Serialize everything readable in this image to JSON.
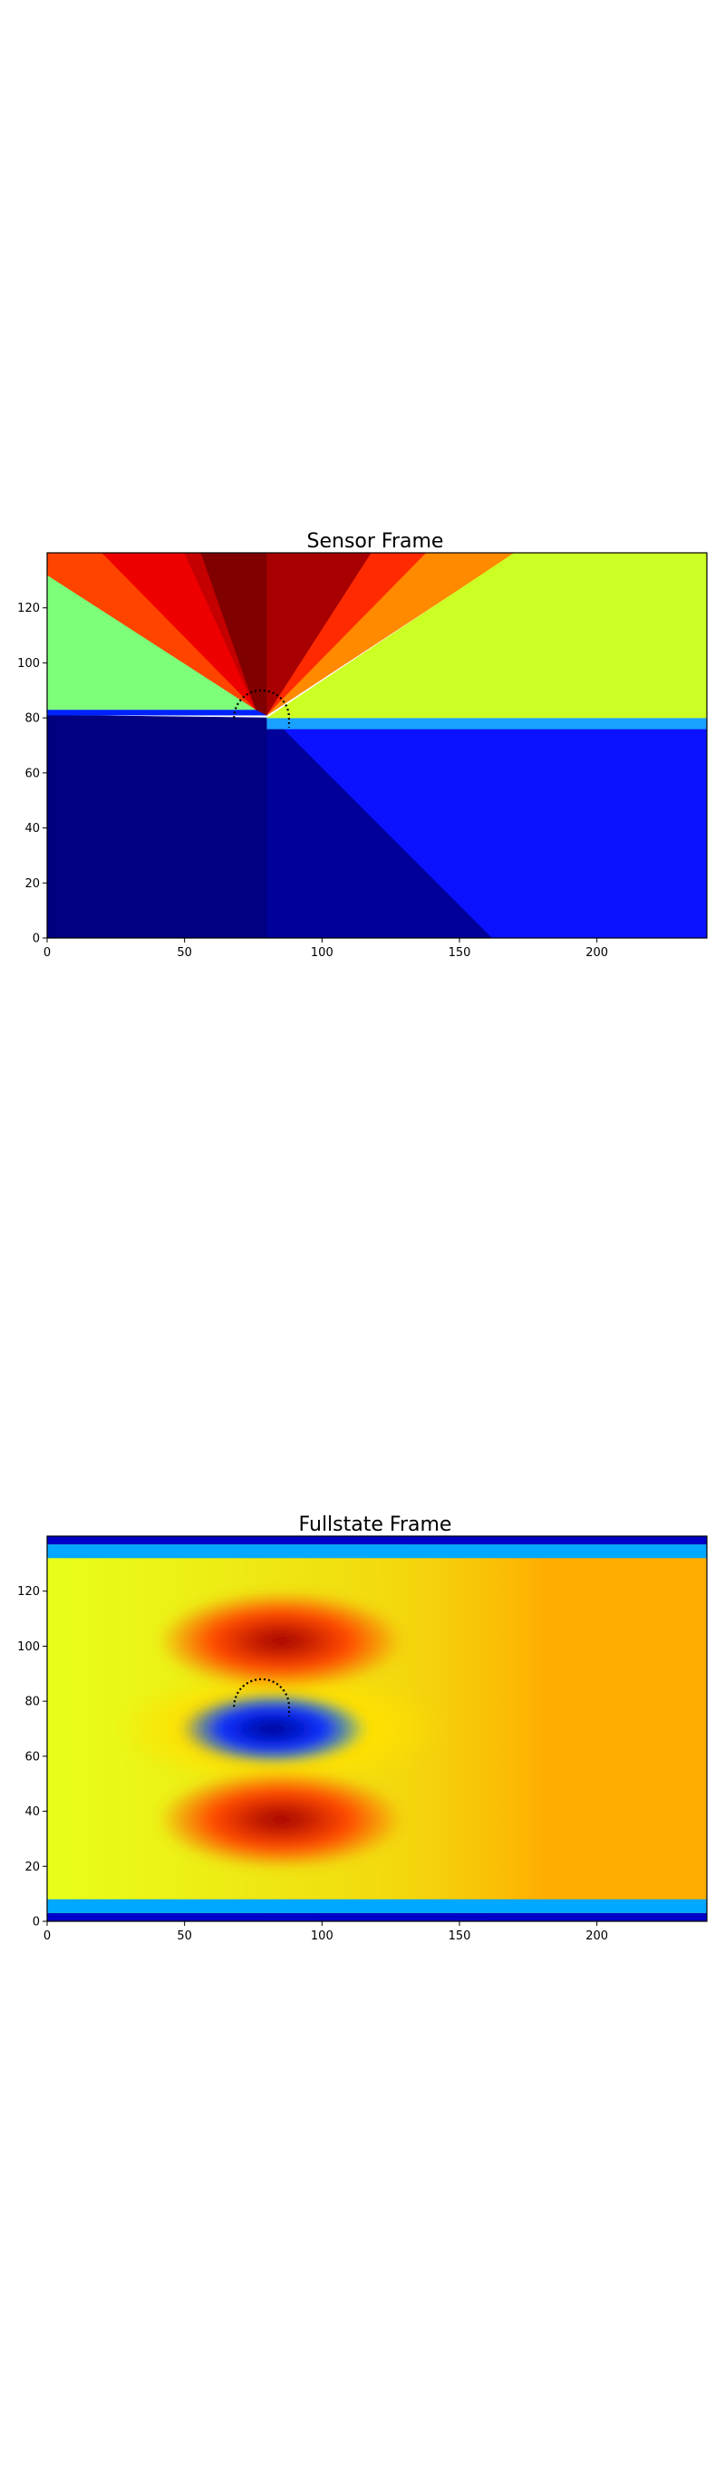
{
  "chart_data": [
    {
      "type": "heatmap",
      "title": "Sensor Frame",
      "xlabel": "",
      "ylabel": "",
      "xlim": [
        0,
        240
      ],
      "ylim": [
        0,
        140
      ],
      "xticks": [
        0,
        50,
        100,
        150,
        200
      ],
      "yticks": [
        0,
        20,
        40,
        60,
        80,
        100,
        120
      ],
      "grid": false,
      "colormap": "jet",
      "overlay": {
        "type": "dotted-semicircle",
        "center": [
          78,
          80
        ],
        "radius": 10,
        "color": "#000000"
      },
      "regions": [
        {
          "name": "lower-left",
          "color": "#000080",
          "polygon": [
            [
              0,
              0
            ],
            [
              80,
              0
            ],
            [
              80,
              80
            ],
            [
              0,
              81
            ]
          ]
        },
        {
          "name": "lower-mid",
          "color": "#00009a",
          "polygon": [
            [
              80,
              0
            ],
            [
              162,
              0
            ],
            [
              84,
              78
            ],
            [
              80,
              80
            ]
          ]
        },
        {
          "name": "lower-right",
          "color": "#0a12ff",
          "polygon": [
            [
              162,
              0
            ],
            [
              240,
              0
            ],
            [
              240,
              76
            ],
            [
              84,
              78
            ]
          ]
        },
        {
          "name": "band-left",
          "color": "#0022ff",
          "polygon": [
            [
              0,
              81
            ],
            [
              80,
              81
            ],
            [
              80,
              83
            ],
            [
              0,
              83
            ]
          ]
        },
        {
          "name": "band-right",
          "color": "#1aa0ff",
          "polygon": [
            [
              80,
              76
            ],
            [
              240,
              76
            ],
            [
              240,
              80
            ],
            [
              80,
              80
            ]
          ]
        },
        {
          "name": "upper-left-green",
          "color": "#7dff7a",
          "polygon": [
            [
              0,
              83
            ],
            [
              76,
              83
            ],
            [
              0,
              132
            ]
          ]
        },
        {
          "name": "upper-left-orange",
          "color": "#ff4400",
          "polygon": [
            [
              0,
              132
            ],
            [
              76,
              83
            ],
            [
              20,
              140
            ],
            [
              0,
              140
            ]
          ]
        },
        {
          "name": "upper-red",
          "color": "#ee0000",
          "polygon": [
            [
              20,
              140
            ],
            [
              76,
              83
            ],
            [
              50,
              140
            ]
          ]
        },
        {
          "name": "upper-darkred-left",
          "color": "#c40000",
          "polygon": [
            [
              50,
              140
            ],
            [
              76,
              83
            ],
            [
              56,
              140
            ]
          ]
        },
        {
          "name": "upper-maroon",
          "color": "#800000",
          "polygon": [
            [
              56,
              140
            ],
            [
              80,
              140
            ],
            [
              80,
              81
            ],
            [
              76,
              83
            ]
          ]
        },
        {
          "name": "upper-darkred-right",
          "color": "#a80000",
          "polygon": [
            [
              80,
              140
            ],
            [
              118,
              140
            ],
            [
              80,
              81
            ]
          ]
        },
        {
          "name": "upper-red-right",
          "color": "#ff2a00",
          "polygon": [
            [
              118,
              140
            ],
            [
              138,
              140
            ],
            [
              80,
              81
            ]
          ]
        },
        {
          "name": "upper-orange-right",
          "color": "#ff8a00",
          "polygon": [
            [
              138,
              140
            ],
            [
              170,
              140
            ],
            [
              80,
              81
            ]
          ]
        },
        {
          "name": "upper-right-yellow",
          "color": "#ccff24",
          "polygon": [
            [
              170,
              140
            ],
            [
              240,
              140
            ],
            [
              240,
              80
            ],
            [
              80,
              80
            ]
          ]
        }
      ]
    },
    {
      "type": "heatmap",
      "title": "Fullstate Frame",
      "xlabel": "",
      "ylabel": "",
      "xlim": [
        0,
        240
      ],
      "ylim": [
        0,
        140
      ],
      "xticks": [
        0,
        50,
        100,
        150,
        200
      ],
      "yticks": [
        0,
        20,
        40,
        60,
        80,
        100,
        120
      ],
      "grid": false,
      "colormap": "jet",
      "overlay": {
        "type": "dotted-semicircle",
        "center": [
          78,
          78
        ],
        "radius": 10,
        "color": "#000000"
      },
      "field": {
        "base": "#ffae00",
        "left_gradient": "#e8ff1a",
        "walls": [
          {
            "y_range": [
              0,
              3
            ],
            "color": "#0000c8"
          },
          {
            "y_range": [
              3,
              8
            ],
            "color": "#00a8ff"
          },
          {
            "y_range": [
              132,
              137
            ],
            "color": "#00a8ff"
          },
          {
            "y_range": [
              137,
              140
            ],
            "color": "#0000c8"
          }
        ],
        "blobs": [
          {
            "name": "upper-lobe",
            "center": [
              85,
              102
            ],
            "radii": [
              45,
              18
            ],
            "inner": "#a00000",
            "outer": "#ff4a00"
          },
          {
            "name": "lower-lobe",
            "center": [
              85,
              37
            ],
            "radii": [
              45,
              18
            ],
            "inner": "#a00000",
            "outer": "#ff4a00"
          },
          {
            "name": "wake-core",
            "center": [
              82,
              70
            ],
            "radii": [
              34,
              13
            ],
            "inner": "#000090",
            "outer": "#0a30ff"
          },
          {
            "name": "wake-halo",
            "center": [
              85,
              70
            ],
            "radii": [
              60,
              22
            ],
            "inner": "#3cffc0",
            "outer": "#ffe000"
          }
        ]
      }
    }
  ]
}
